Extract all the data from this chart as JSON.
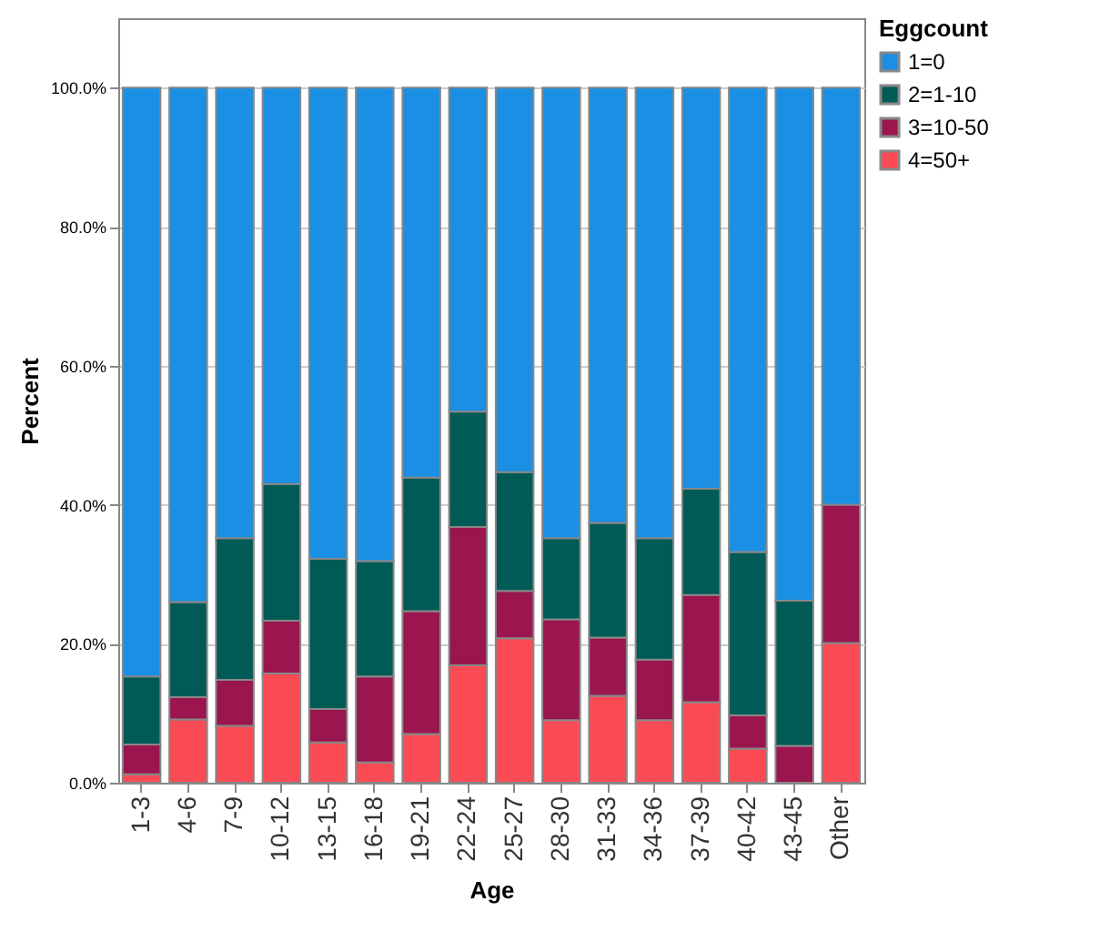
{
  "chart_data": {
    "type": "bar",
    "stacked": true,
    "xlabel": "Age",
    "ylabel": "Percent",
    "legend_title": "Eggcount",
    "legend": "top right",
    "grid": "y",
    "categories": [
      "1-3",
      "4-6",
      "7-9",
      "10-12",
      "13-15",
      "16-18",
      "19-21",
      "22-24",
      "25-27",
      "28-30",
      "31-33",
      "34-36",
      "37-39",
      "40-42",
      "43-45",
      "Other"
    ],
    "series": [
      {
        "name": "4=50+",
        "color": "#fa4b55",
        "values": [
          1.2,
          9.1,
          8.2,
          15.7,
          5.8,
          2.9,
          7.0,
          16.9,
          20.8,
          9.0,
          12.5,
          9.0,
          11.6,
          4.9,
          0,
          20.1
        ]
      },
      {
        "name": "3=10-50",
        "color": "#9b154f",
        "values": [
          4.3,
          3.2,
          6.6,
          7.6,
          4.8,
          12.4,
          17.7,
          19.9,
          6.8,
          14.5,
          8.4,
          8.7,
          15.4,
          4.8,
          5.3,
          19.9
        ]
      },
      {
        "name": "2=1-10",
        "color": "#005a55",
        "values": [
          9.8,
          13.7,
          20.4,
          19.7,
          21.6,
          16.6,
          19.2,
          16.6,
          17.1,
          11.7,
          16.5,
          17.5,
          15.3,
          23.5,
          20.9,
          0
        ]
      },
      {
        "name": "1=0",
        "color": "#1a8fe3",
        "values": [
          84.7,
          74.0,
          64.8,
          57.0,
          67.8,
          68.1,
          56.1,
          46.6,
          55.3,
          64.8,
          62.6,
          64.8,
          57.7,
          66.8,
          73.8,
          60.0
        ]
      }
    ],
    "ylim": [
      0,
      110
    ],
    "yticks": [
      {
        "value": 0,
        "label": "0.0%"
      },
      {
        "value": 20,
        "label": "20.0%"
      },
      {
        "value": 40,
        "label": "40.0%"
      },
      {
        "value": 60,
        "label": "60.0%"
      },
      {
        "value": 80,
        "label": "80.0%"
      },
      {
        "value": 100,
        "label": "100.0%"
      }
    ]
  }
}
